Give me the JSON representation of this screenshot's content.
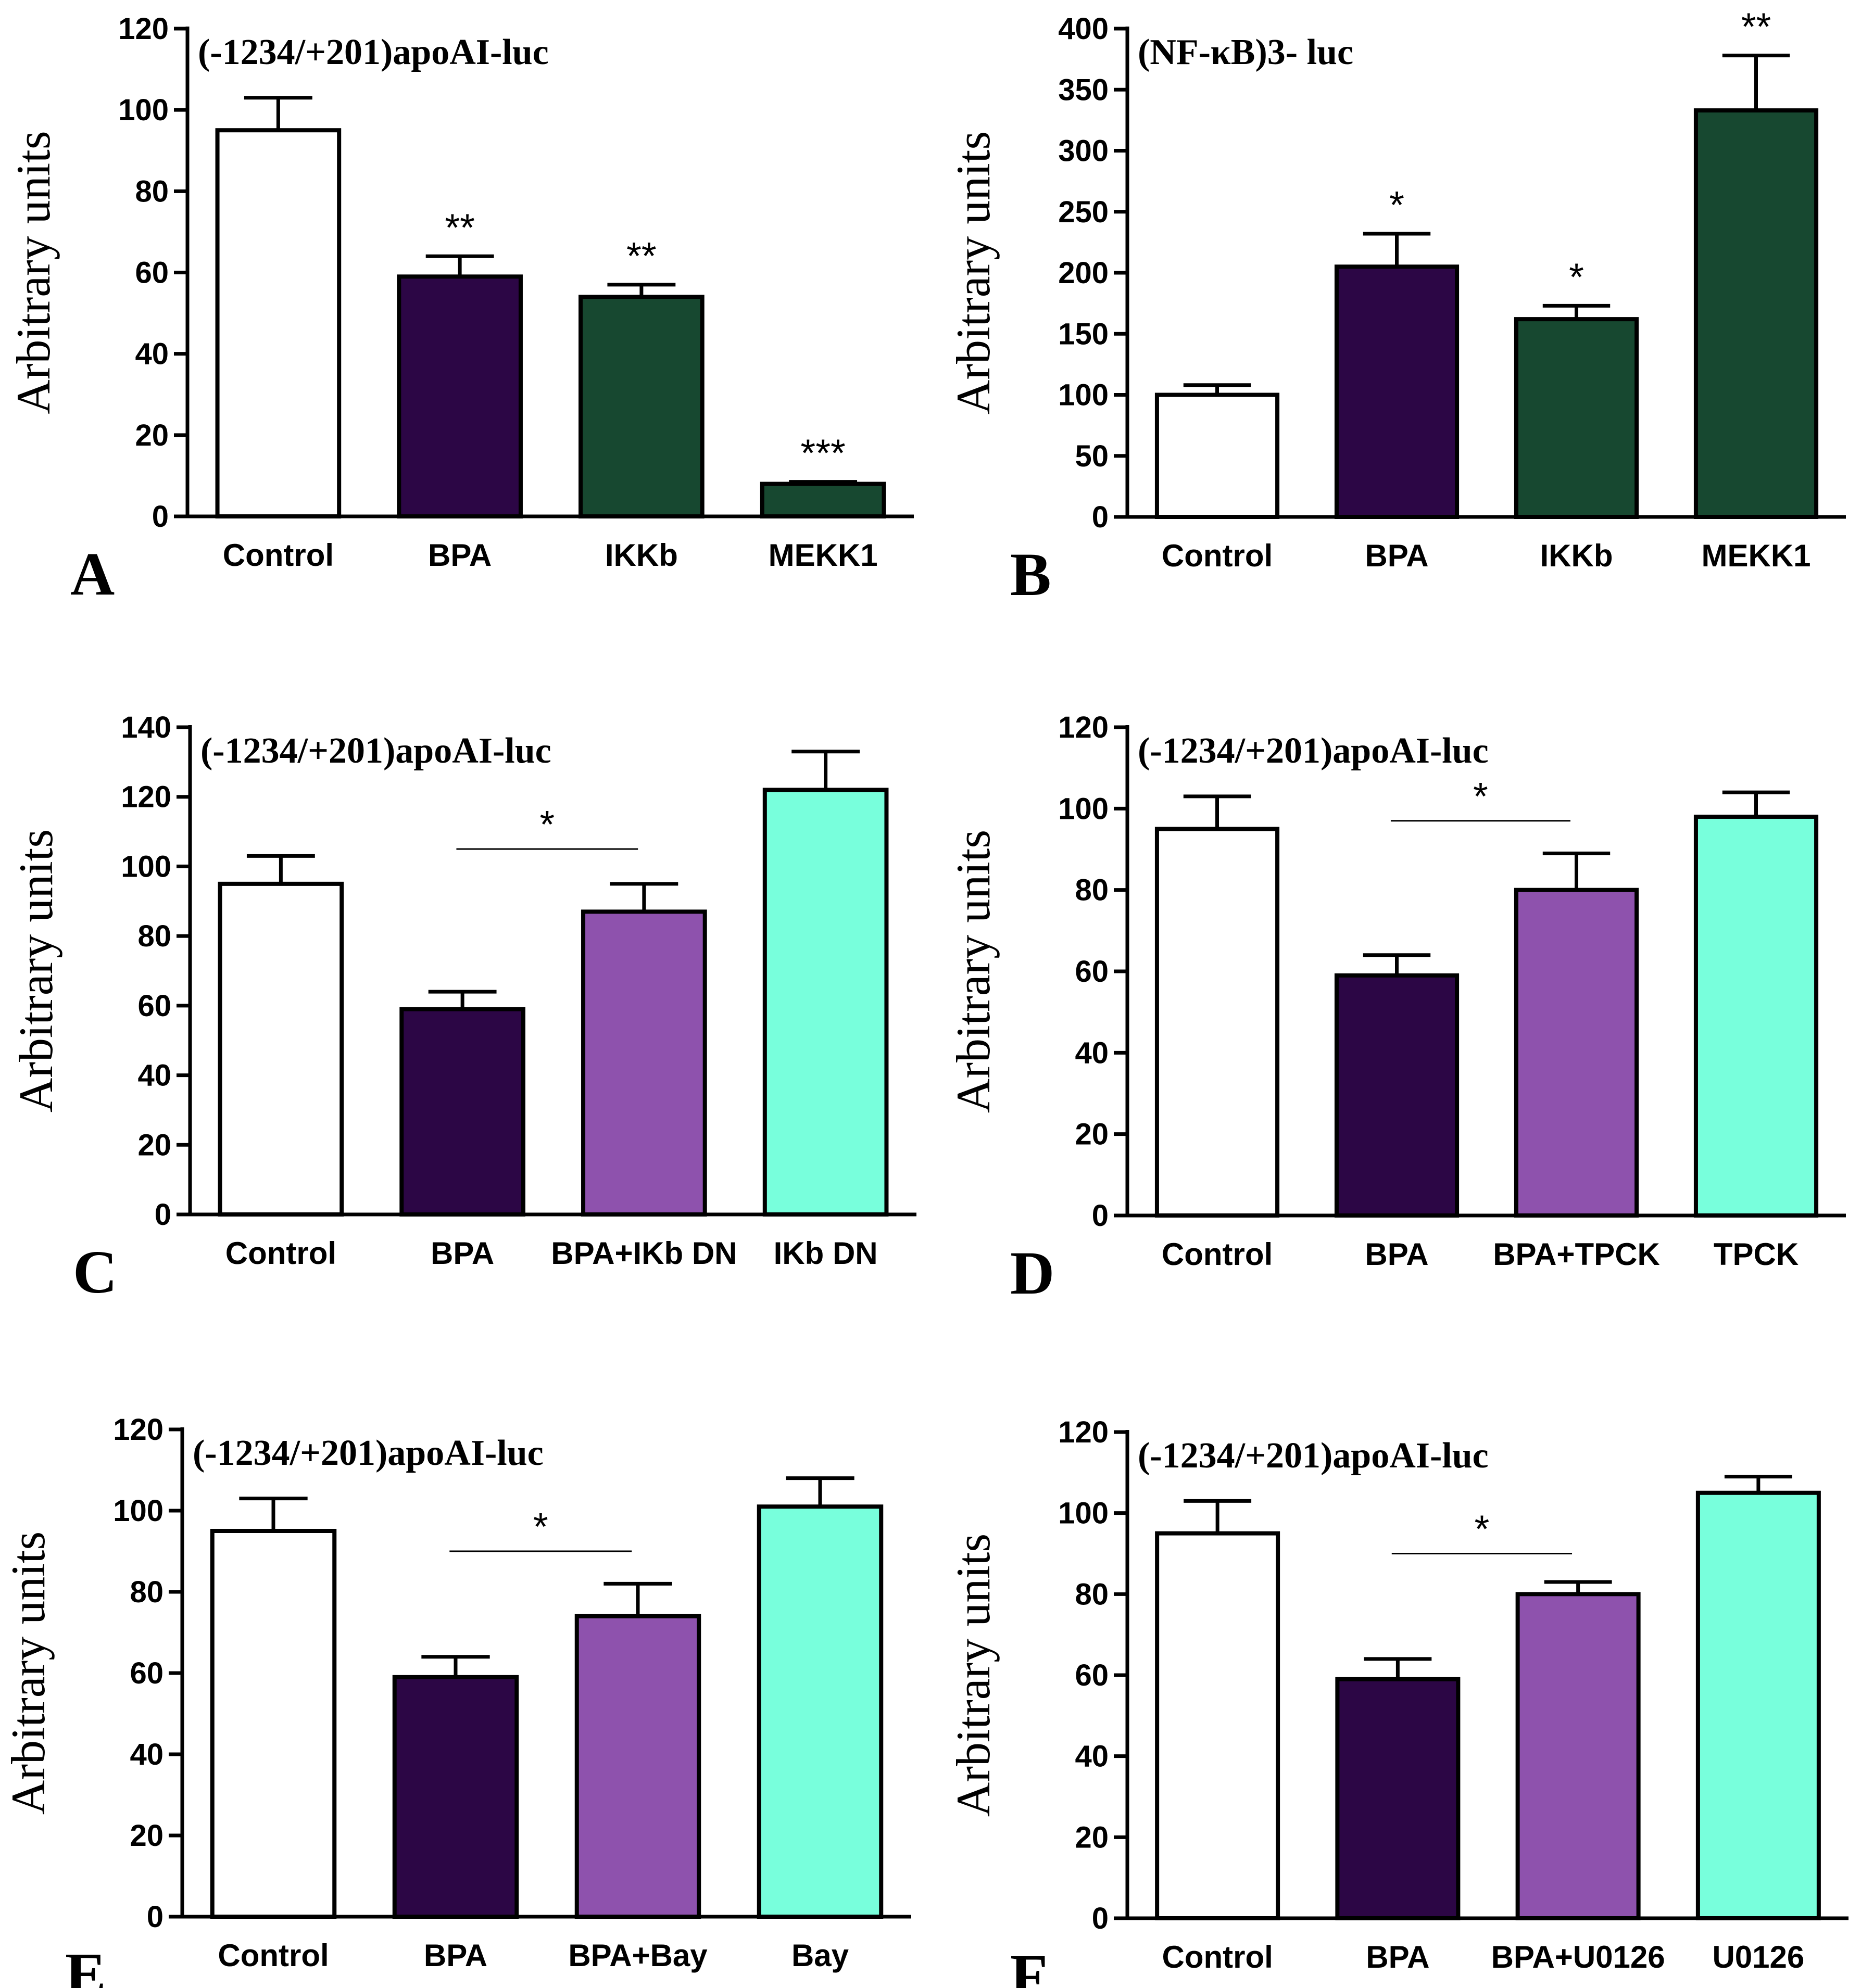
{
  "chart_data": [
    {
      "panel": "A",
      "type": "bar",
      "title": "(-1234/+201)apoAI-luc",
      "ylabel": "Arbitrary units",
      "ylim": [
        0,
        120
      ],
      "yticks": [
        0,
        20,
        40,
        60,
        80,
        100,
        120
      ],
      "categories": [
        "Control",
        "BPA",
        "IKKb",
        "MEKK1"
      ],
      "values": [
        95,
        59,
        54,
        8
      ],
      "errors": [
        8,
        5,
        3,
        0.5
      ],
      "colors": [
        "#ffffff",
        "#2c0645",
        "#174830",
        "#174830"
      ],
      "significance": [
        "",
        "**",
        "**",
        "***"
      ],
      "bracket": null
    },
    {
      "panel": "B",
      "type": "bar",
      "title": "(NF-κB)3- luc",
      "ylabel": "Arbitrary units",
      "ylim": [
        0,
        400
      ],
      "yticks": [
        0,
        50,
        100,
        150,
        200,
        250,
        300,
        350,
        400
      ],
      "categories": [
        "Control",
        "BPA",
        "IKKb",
        "MEKK1"
      ],
      "values": [
        100,
        205,
        162,
        333
      ],
      "errors": [
        8,
        27,
        11,
        45
      ],
      "colors": [
        "#ffffff",
        "#2c0645",
        "#174830",
        "#174830"
      ],
      "significance": [
        "",
        "*",
        "*",
        "**"
      ],
      "bracket": null
    },
    {
      "panel": "C",
      "type": "bar",
      "title": "(-1234/+201)apoAI-luc",
      "ylabel": "Arbitrary units",
      "ylim": [
        0,
        140
      ],
      "yticks": [
        0,
        20,
        40,
        60,
        80,
        100,
        120,
        140
      ],
      "categories": [
        "Control",
        "BPA",
        "BPA+IKb DN",
        "IKb DN"
      ],
      "values": [
        95,
        59,
        87,
        122
      ],
      "errors": [
        8,
        5,
        8,
        11
      ],
      "colors": [
        "#ffffff",
        "#2c0645",
        "#8e52ad",
        "#78ffdc"
      ],
      "significance": [
        "",
        "",
        "",
        ""
      ],
      "bracket": {
        "from": 1,
        "to": 2,
        "y": 105,
        "label": "*"
      }
    },
    {
      "panel": "D",
      "type": "bar",
      "title": "(-1234/+201)apoAI-luc",
      "ylabel": "Arbitrary units",
      "ylim": [
        0,
        120
      ],
      "yticks": [
        0,
        20,
        40,
        60,
        80,
        100,
        120
      ],
      "categories": [
        "Control",
        "BPA",
        "BPA+TPCK",
        "TPCK"
      ],
      "values": [
        95,
        59,
        80,
        98
      ],
      "errors": [
        8,
        5,
        9,
        6
      ],
      "colors": [
        "#ffffff",
        "#2c0645",
        "#8e52ad",
        "#78ffdc"
      ],
      "significance": [
        "",
        "",
        "",
        ""
      ],
      "bracket": {
        "from": 1,
        "to": 2,
        "y": 97,
        "label": "*"
      }
    },
    {
      "panel": "E",
      "type": "bar",
      "title": "(-1234/+201)apoAI-luc",
      "ylabel": "Arbitrary units",
      "ylim": [
        0,
        120
      ],
      "yticks": [
        0,
        20,
        40,
        60,
        80,
        100,
        120
      ],
      "categories": [
        "Control",
        "BPA",
        "BPA+Bay",
        "Bay"
      ],
      "values": [
        95,
        59,
        74,
        101
      ],
      "errors": [
        8,
        5,
        8,
        7
      ],
      "colors": [
        "#ffffff",
        "#2c0645",
        "#8e52ad",
        "#78ffdc"
      ],
      "significance": [
        "",
        "",
        "",
        ""
      ],
      "bracket": {
        "from": 1,
        "to": 2,
        "y": 90,
        "label": "*"
      }
    },
    {
      "panel": "F",
      "type": "bar",
      "title": "(-1234/+201)apoAI-luc",
      "ylabel": "Arbitrary units",
      "ylim": [
        0,
        120
      ],
      "yticks": [
        0,
        20,
        40,
        60,
        80,
        100,
        120
      ],
      "categories": [
        "Control",
        "BPA",
        "BPA+U0126",
        "U0126"
      ],
      "values": [
        95,
        59,
        80,
        105
      ],
      "errors": [
        8,
        5,
        3,
        4
      ],
      "colors": [
        "#ffffff",
        "#2c0645",
        "#8e52ad",
        "#78ffdc"
      ],
      "significance": [
        "",
        "",
        "",
        ""
      ],
      "bracket": {
        "from": 1,
        "to": 2,
        "y": 90,
        "label": "*"
      }
    }
  ]
}
